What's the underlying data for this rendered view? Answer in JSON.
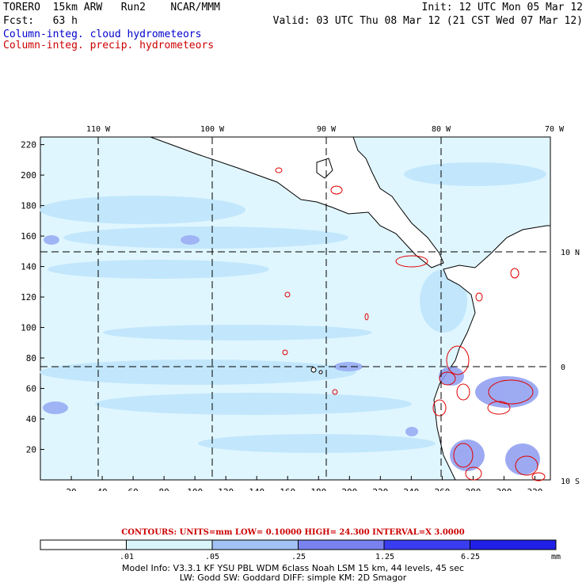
{
  "header": {
    "left_line1": "TORERO  15km ARW   Run2    NCAR/MMM",
    "left_line2": "Fcst:   63 h",
    "right_line1": "Init: 12 UTC Mon 05 Mar 12",
    "right_line2": "Valid: 03 UTC Thu 08 Mar 12 (21 CST Wed 07 Mar 12)",
    "legend_cloud": "Column-integ. cloud hydrometeors",
    "legend_precip": "Column-integ. precip. hydrometeors",
    "cloud_color": "#0000cc",
    "precip_color": "#cc0000"
  },
  "map": {
    "x_grid_labels": [
      "20",
      "40",
      "60",
      "80",
      "100",
      "120",
      "140",
      "160",
      "180",
      "200",
      "220",
      "240",
      "260",
      "280",
      "300",
      "320"
    ],
    "y_grid_labels": [
      "20",
      "40",
      "60",
      "80",
      "100",
      "120",
      "140",
      "160",
      "180",
      "200",
      "220"
    ],
    "lon_labels": [
      "110 W",
      "100 W",
      "90 W",
      "80 W",
      "70 W"
    ],
    "lat_labels": [
      "10 N",
      "0",
      "10 S"
    ],
    "colors": {
      "land": "#ffffff",
      "ocean_light": "#e0f6ff",
      "cloud_mid": "#bcd8ff",
      "cloud_heavy": "#8c9cf0",
      "coast": "#000000",
      "precip_contour": "#e00000"
    }
  },
  "contours": "CONTOURS:  UNITS=mm  LOW= 0.10000      HIGH=  24.300      INTERVAL=X  3.0000",
  "colorbar": {
    "labels": [
      ".01",
      ".05",
      ".25",
      "1.25",
      "6.25"
    ],
    "unit": "mm",
    "colors": [
      "#ffffff",
      "#d9f5fb",
      "#a3c2f5",
      "#7a82f0",
      "#3a3cf0",
      "#2020e8"
    ]
  },
  "model_info_line1": "Model Info: V3.3.1    KF       YSU PBL  WDM 6class  Noah LSM  15 km,    44 levels,    45 sec",
  "model_info_line2": "LW: Godd SW: Goddard DIFF: simple KM: 2D Smagor"
}
